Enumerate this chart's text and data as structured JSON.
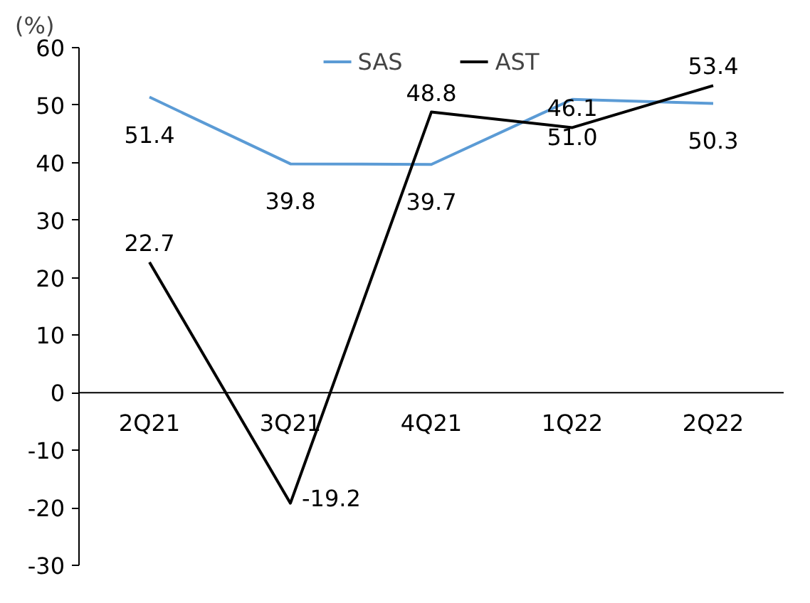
{
  "chart_data": {
    "type": "line",
    "ylabel": "(%)",
    "categories": [
      "2Q21",
      "3Q21",
      "4Q21",
      "1Q22",
      "2Q22"
    ],
    "series": [
      {
        "name": "SAS",
        "color": "#5b9bd5",
        "values": [
          51.4,
          39.8,
          39.7,
          51.0,
          50.3
        ],
        "value_labels": [
          "51.4",
          "39.8",
          "39.7",
          "51.0",
          "50.3"
        ]
      },
      {
        "name": "AST",
        "color": "#000000",
        "values": [
          22.7,
          -19.2,
          48.8,
          46.1,
          53.4
        ],
        "value_labels": [
          "22.7",
          "-19.2",
          "48.8",
          "46.1",
          "53.4"
        ]
      }
    ],
    "ylim": [
      -30,
      60
    ],
    "yticks": [
      -30,
      -20,
      -10,
      0,
      10,
      20,
      30,
      40,
      50,
      60
    ],
    "legend": "top",
    "grid": false,
    "marker": "none"
  }
}
